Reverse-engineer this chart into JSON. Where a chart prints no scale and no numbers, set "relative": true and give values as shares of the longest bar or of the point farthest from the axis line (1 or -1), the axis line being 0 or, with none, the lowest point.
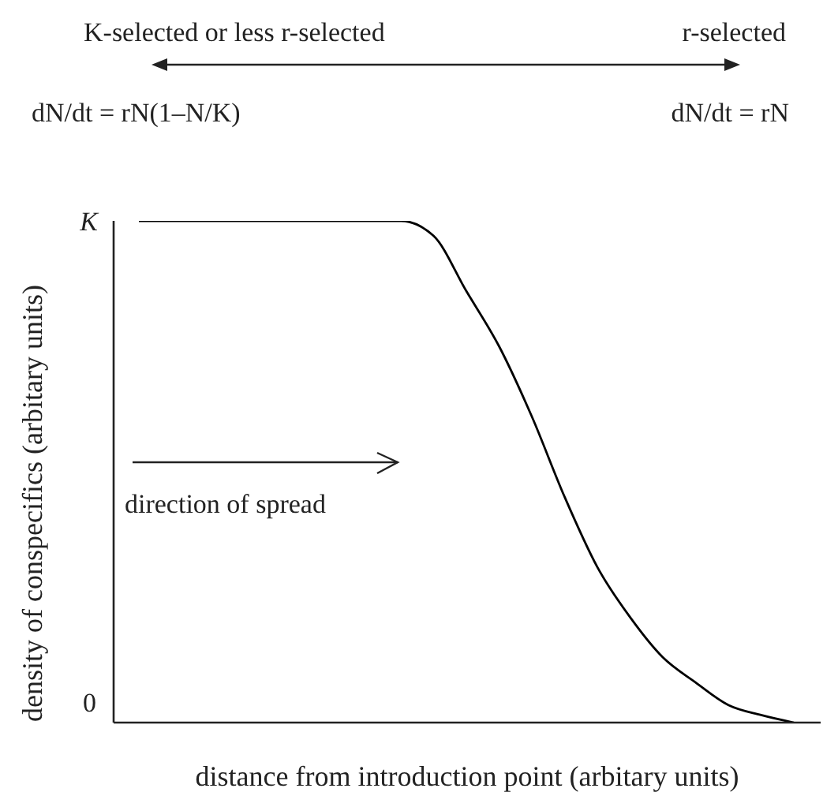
{
  "chart_data": {
    "type": "line",
    "xlabel": "distance from introduction point (arbitary units)",
    "ylabel": "density of conspecifics (arbitary units)",
    "categories": [
      null,
      null,
      null,
      null,
      null,
      null,
      null,
      null,
      null,
      null,
      null,
      null,
      null,
      null,
      null,
      null,
      null,
      null,
      null,
      null,
      null
    ],
    "series": [
      {
        "color": "#000000",
        "values": [
          1,
          1,
          1,
          1,
          1,
          1,
          1,
          1,
          1,
          0.97,
          0.86,
          0.75,
          0.61,
          0.45,
          0.31,
          0.21,
          0.13,
          0.08,
          0.035,
          0.015,
          0
        ]
      }
    ],
    "relative": true,
    "annotations": [
      "K-selected or less r-selected",
      "r-selected",
      "dN/dt = rN(1–N/K)",
      "dN/dt = rN",
      "direction of spread",
      "K",
      "0"
    ]
  }
}
